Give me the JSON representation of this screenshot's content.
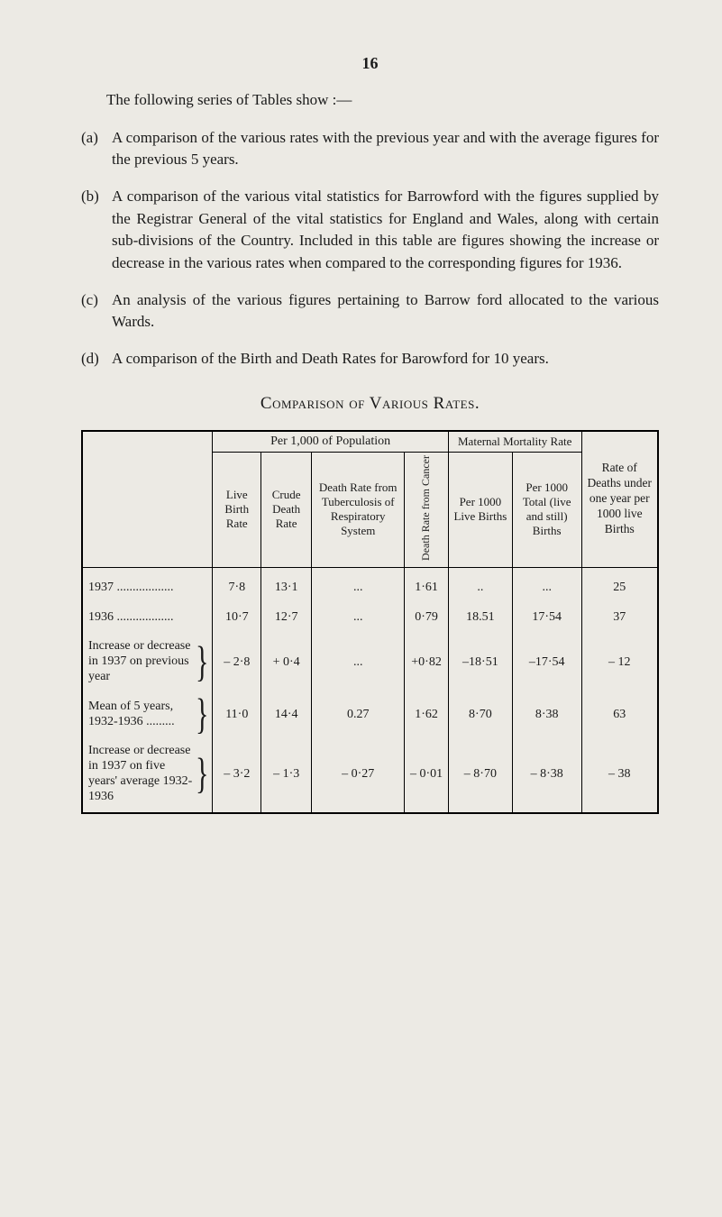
{
  "page_number": "16",
  "intro": "The following series of Tables show :—",
  "items": [
    {
      "marker": "(a)",
      "text": "A comparison of the various rates with the previous year and with the average figures for the previous 5 years."
    },
    {
      "marker": "(b)",
      "text": "A comparison of the various vital statistics for Barrowford with the figures supplied by the Registrar General of the vital statistics for England and Wales, along with certain sub-divisions of the Country. Included in this table are figures showing the increase or decrease in the various rates when compared to the corresponding figures for 1936."
    },
    {
      "marker": "(c)",
      "text": "An analysis of the various figures pertaining to Barrow ford allocated to the various Wards."
    },
    {
      "marker": "(d)",
      "text": "A comparison of the Birth and Death Rates for Barowford for 10 years."
    }
  ],
  "table_title": "Comparison of Various Rates.",
  "table": {
    "group_headers": {
      "per_1000": "Per 1,000 of Population",
      "maternal": "Maternal\nMortality Rate",
      "rate_of": "Rate of Deaths under one year per 1000 live Births"
    },
    "sub_headers": {
      "live_birth_rate": "Live Birth Rate",
      "crude_death_rate": "Crude Death Rate",
      "death_rate_tb": "Death Rate from Tuberculosis of Respira­tory System",
      "death_rate_cancer": "Death Rate from Cancer",
      "per_1000_live_births": "Per 1000 Live Births",
      "per_1000_total": "Per 1000 Total (live and still) Births"
    },
    "rows": [
      {
        "label": "1937 ..................",
        "c1": "7·8",
        "c2": "13·1",
        "c3": "...",
        "c4": "1·61",
        "c5": "..",
        "c6": "...",
        "c7": "25"
      },
      {
        "label": "1936 ..................",
        "c1": "10·7",
        "c2": "12·7",
        "c3": "...",
        "c4": "0·79",
        "c5": "18.51",
        "c6": "17·54",
        "c7": "37"
      },
      {
        "label": "Increase or de­crease in 1937 on previous year",
        "brace": true,
        "c1": "– 2·8",
        "c2": "+ 0·4",
        "c3": "...",
        "c4": "+0·82",
        "c5": "–18·51",
        "c6": "–17·54",
        "c7": "– 12"
      },
      {
        "label": "Mean of 5 years, 1932-1936 .........",
        "brace": true,
        "c1": "11·0",
        "c2": "14·4",
        "c3": "0.27",
        "c4": "1·62",
        "c5": "8·70",
        "c6": "8·38",
        "c7": "63"
      },
      {
        "label": "Increase or de­crease in 1937 on five years' average 1932-1936",
        "brace": true,
        "c1": "– 3·2",
        "c2": "– 1·3",
        "c3": "– 0·27",
        "c4": "– 0·01",
        "c5": "– 8·70",
        "c6": "– 8·38",
        "c7": "– 38"
      }
    ]
  }
}
